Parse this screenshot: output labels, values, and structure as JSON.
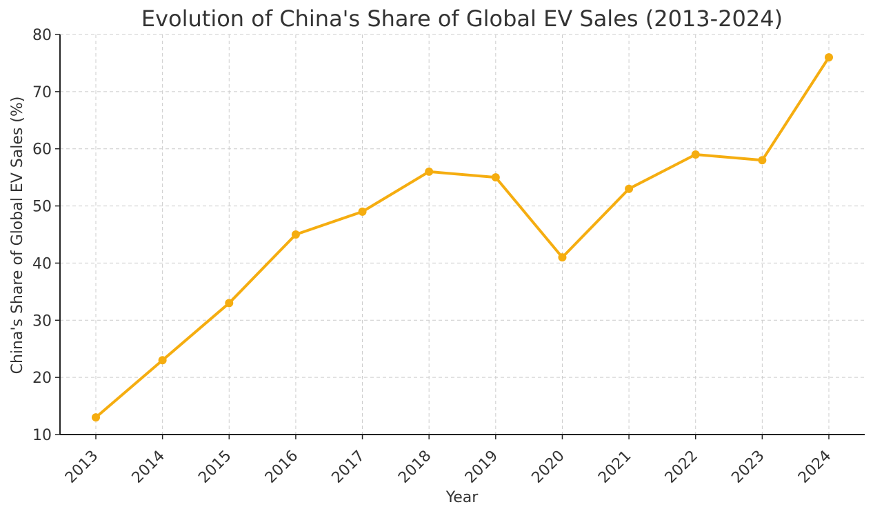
{
  "chart_data": {
    "type": "line",
    "title": "Evolution of China's Share of Global EV Sales (2013-2024)",
    "xlabel": "Year",
    "ylabel": "China's Share of Global EV Sales (%)",
    "categories": [
      "2013",
      "2014",
      "2015",
      "2016",
      "2017",
      "2018",
      "2019",
      "2020",
      "2021",
      "2022",
      "2023",
      "2024"
    ],
    "series": [
      {
        "name": "China's Share of Global EV Sales",
        "values": [
          13,
          23,
          33,
          45,
          49,
          56,
          55,
          41,
          53,
          59,
          58,
          76
        ]
      }
    ],
    "ylim": [
      10,
      80
    ],
    "yticks": [
      10,
      20,
      30,
      40,
      50,
      60,
      70,
      80
    ],
    "grid": true,
    "color": "#F5AD10"
  }
}
